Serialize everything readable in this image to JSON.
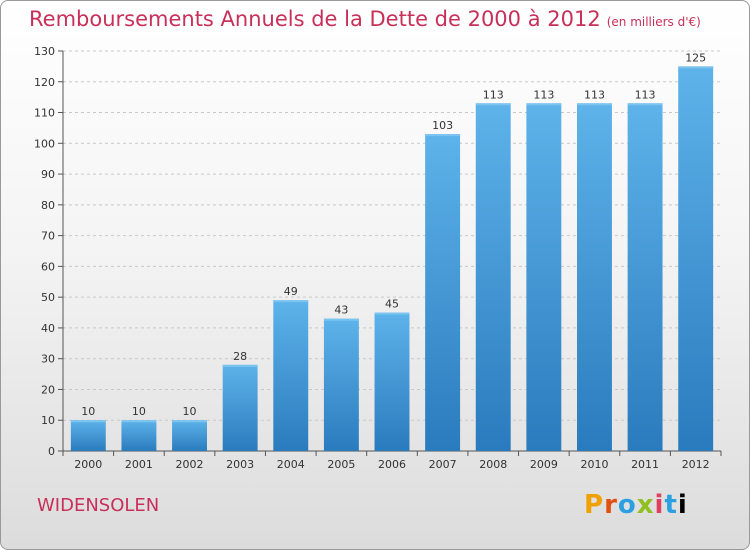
{
  "page": {
    "title": "Remboursements Annuels de la Dette de 2000 à 2012",
    "unit": "(en milliers d'€)",
    "commune": "WIDENSOLEN",
    "logo_letters": [
      "P",
      "r",
      "o",
      "x",
      "i",
      "t",
      "i"
    ]
  },
  "colors": {
    "accent": "#c8305a",
    "bar_top": "#5eb3ea",
    "bar_bottom": "#2a7bbd",
    "grid": "#c8c8c8"
  },
  "chart_data": {
    "type": "bar",
    "title": "Remboursements Annuels de la Dette de 2000 à 2012",
    "subtitle": "(en milliers d'€)",
    "categories": [
      "2000",
      "2001",
      "2002",
      "2003",
      "2004",
      "2005",
      "2006",
      "2007",
      "2008",
      "2009",
      "2010",
      "2011",
      "2012"
    ],
    "values": [
      10,
      10,
      10,
      28,
      49,
      43,
      45,
      103,
      113,
      113,
      113,
      113,
      125
    ],
    "ylim": [
      0,
      130
    ],
    "yticks": [
      0,
      10,
      20,
      30,
      40,
      50,
      60,
      70,
      80,
      90,
      100,
      110,
      120,
      130
    ],
    "grid": true,
    "data_labels": true
  }
}
